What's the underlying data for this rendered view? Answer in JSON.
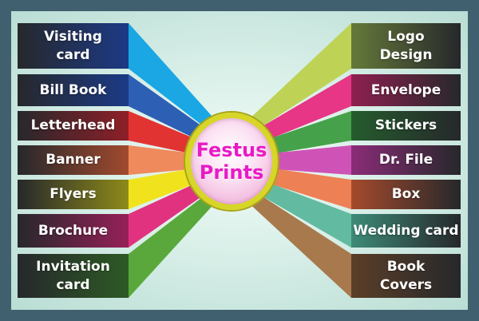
{
  "center": {
    "title": "Festus\nPrints"
  },
  "left_items": [
    {
      "label": "Visiting\ncard",
      "color": "#1aa7e3",
      "box_color": "#1c3a86"
    },
    {
      "label": "Bill Book",
      "color": "#2d5fb4",
      "box_color": "#1c3a86"
    },
    {
      "label": "Letterhead",
      "color": "#e23333",
      "box_color": "#8f1f28"
    },
    {
      "label": "Banner",
      "color": "#ef8a5c",
      "box_color": "#a14a2e"
    },
    {
      "label": "Flyers",
      "color": "#f1e21e",
      "box_color": "#8e8a1a"
    },
    {
      "label": "Brochure",
      "color": "#e0327f",
      "box_color": "#962058"
    },
    {
      "label": "Invitation\ncard",
      "color": "#5aa83c",
      "box_color": "#2d5a25"
    }
  ],
  "right_items": [
    {
      "label": "Logo\nDesign",
      "color": "#bed256",
      "box_color": "#65793a"
    },
    {
      "label": "Envelope",
      "color": "#e63685",
      "box_color": "#8e2050"
    },
    {
      "label": "Stickers",
      "color": "#45a24a",
      "box_color": "#255c2d"
    },
    {
      "label": "Dr. File",
      "color": "#cf53b6",
      "box_color": "#8b2c78"
    },
    {
      "label": "Box",
      "color": "#ee8055",
      "box_color": "#a54a2c"
    },
    {
      "label": "Wedding card",
      "color": "#62bba0",
      "box_color": "#3e8b78"
    },
    {
      "label": "Book\nCovers",
      "color": "#a8794c",
      "box_color": "#5b3e27"
    }
  ]
}
